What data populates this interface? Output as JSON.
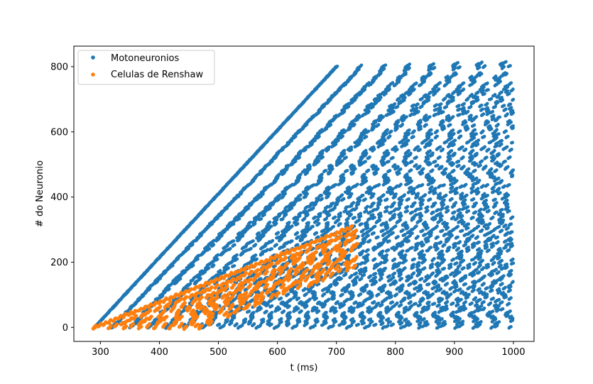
{
  "chart_data": {
    "type": "scatter",
    "xlabel": "t (ms)",
    "ylabel": "# do Neuronio",
    "xlim": [
      255,
      1035
    ],
    "ylim": [
      -43,
      863
    ],
    "xticks": [
      300,
      400,
      500,
      600,
      700,
      800,
      900,
      1000
    ],
    "yticks": [
      0,
      200,
      400,
      600,
      800
    ],
    "grid": false,
    "legend_position": "top-left",
    "series": [
      {
        "name": "Motoneuronios",
        "color": "#1f77b4",
        "description": "Raster of motoneuron spikes: recruitment front rising from about 290 ms (neuron 0) to about 700 ms (neuron 800), then all neurons firing repetitively until 1000 ms",
        "recruitment_front": {
          "x": [
            290,
            700
          ],
          "y": [
            0,
            800
          ]
        },
        "saturation": {
          "x": [
            700,
            1000
          ],
          "y": [
            800,
            820
          ]
        }
      },
      {
        "name": "Celulas de Renshaw",
        "color": "#ff7f0e",
        "description": "Renshaw cell spikes clustered between about 290 ms and 730 ms, neuron index 0 to about 310",
        "recruitment_front": {
          "x": [
            290,
            730
          ],
          "y": [
            0,
            310
          ]
        }
      }
    ]
  }
}
